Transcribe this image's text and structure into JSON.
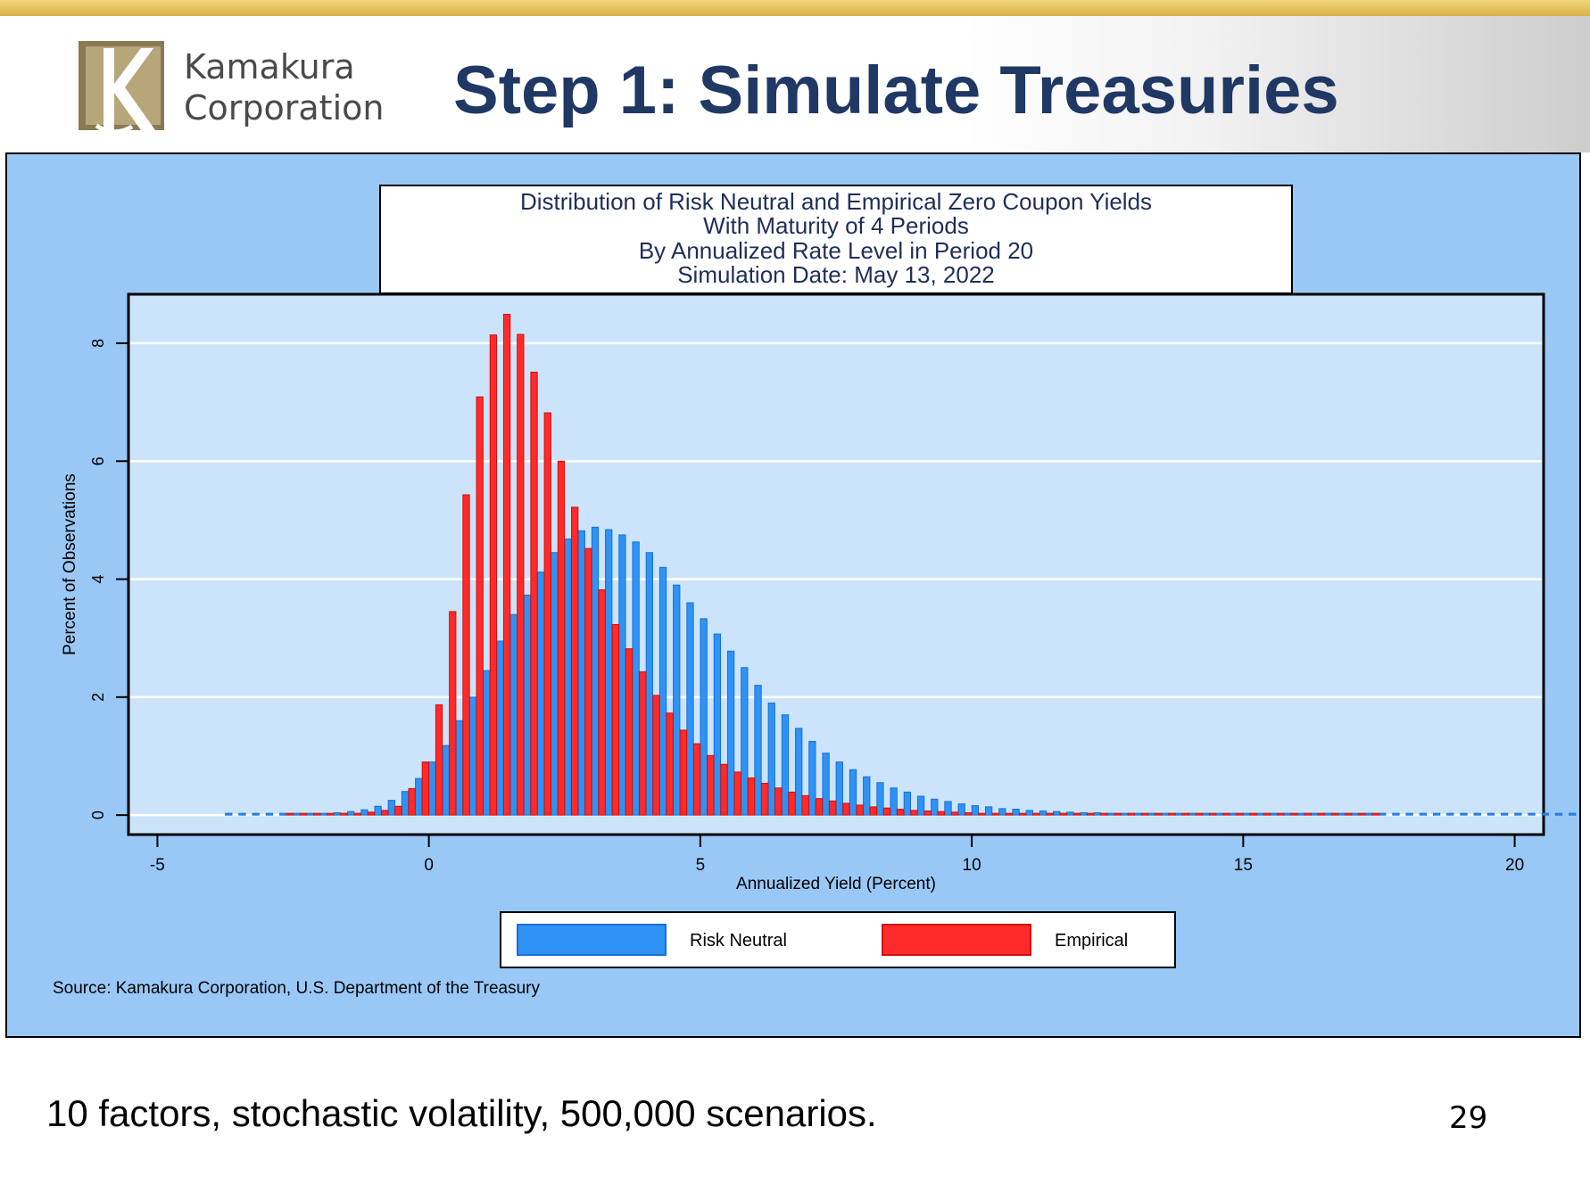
{
  "slide": {
    "title": "Step 1: Simulate Treasuries",
    "logo": {
      "line1": "Kamakura",
      "line2": "Corporation"
    },
    "caption": "10 factors, stochastic volatility, 500,000 scenarios.",
    "page_number": "29"
  },
  "colors": {
    "risk_neutral": "#2f93f5",
    "empirical": "#ff2a2a",
    "plot_bg": "#cbe4fb",
    "panel_bg": "#99c8f7",
    "title_navy": "#1f3864"
  },
  "chart_data": {
    "type": "bar",
    "title_lines": [
      "Distribution of Risk Neutral and Empirical Zero Coupon Yields",
      "With Maturity of 4 Periods",
      "By Annualized Rate Level in Period 20",
      "Simulation Date: May 13, 2022"
    ],
    "xlabel": "Annualized Yield (Percent)",
    "ylabel": "Percent of Observations",
    "xlim": [
      -5.5,
      20.5
    ],
    "ylim": [
      -0.3,
      8.8
    ],
    "xticks": [
      -5,
      0,
      5,
      10,
      15,
      20
    ],
    "yticks": [
      0,
      2,
      4,
      6,
      8
    ],
    "grid": true,
    "legend_position": "bottom",
    "source": "Source: Kamakura Corporation, U.S. Department of the Treasury",
    "bin_width": 0.25,
    "series": [
      {
        "name": "Risk Neutral",
        "x_start": -3.75,
        "values": [
          0.01,
          0.01,
          0.01,
          0.01,
          0.01,
          0.01,
          0.02,
          0.03,
          0.04,
          0.06,
          0.09,
          0.15,
          0.25,
          0.4,
          0.62,
          0.9,
          1.18,
          1.6,
          2.0,
          2.45,
          2.95,
          3.4,
          3.73,
          4.12,
          4.45,
          4.68,
          4.82,
          4.88,
          4.84,
          4.75,
          4.63,
          4.45,
          4.2,
          3.9,
          3.6,
          3.33,
          3.07,
          2.78,
          2.5,
          2.2,
          1.9,
          1.7,
          1.47,
          1.25,
          1.05,
          0.9,
          0.77,
          0.65,
          0.55,
          0.46,
          0.39,
          0.32,
          0.27,
          0.23,
          0.19,
          0.16,
          0.14,
          0.11,
          0.1,
          0.08,
          0.07,
          0.06,
          0.05,
          0.04,
          0.04,
          0.03,
          0.03,
          0.02,
          0.02,
          0.02,
          0.02,
          0.01,
          0.01,
          0.01,
          0.01,
          0.01,
          0.01,
          0.01,
          0.01,
          0.01,
          0.01,
          0.01,
          0.01,
          0.01,
          0.01,
          0,
          0,
          0,
          0,
          0,
          0.01,
          0,
          0,
          0,
          0,
          0,
          0,
          0,
          0,
          0,
          0.01
        ]
      },
      {
        "name": "Empirical",
        "x_start": -2.5,
        "values": [
          0.01,
          0.01,
          0.01,
          0.02,
          0.02,
          0.03,
          0.05,
          0.08,
          0.15,
          0.45,
          0.9,
          1.87,
          3.45,
          5.43,
          7.09,
          8.14,
          8.49,
          8.15,
          7.51,
          6.82,
          6.0,
          5.22,
          4.52,
          3.82,
          3.23,
          2.82,
          2.43,
          2.03,
          1.73,
          1.44,
          1.21,
          1.01,
          0.86,
          0.73,
          0.63,
          0.54,
          0.46,
          0.39,
          0.33,
          0.28,
          0.24,
          0.2,
          0.17,
          0.14,
          0.12,
          0.1,
          0.08,
          0.07,
          0.06,
          0.05,
          0.04,
          0.03,
          0.03,
          0.02,
          0.02,
          0.02,
          0.02,
          0.01,
          0.01,
          0.01,
          0.01,
          0.01,
          0.01,
          0.01,
          0.01,
          0.01,
          0.01,
          0.01,
          0.01,
          0.01,
          0,
          0,
          0,
          0,
          0,
          0,
          0,
          0,
          0,
          0,
          0.01
        ]
      }
    ]
  }
}
